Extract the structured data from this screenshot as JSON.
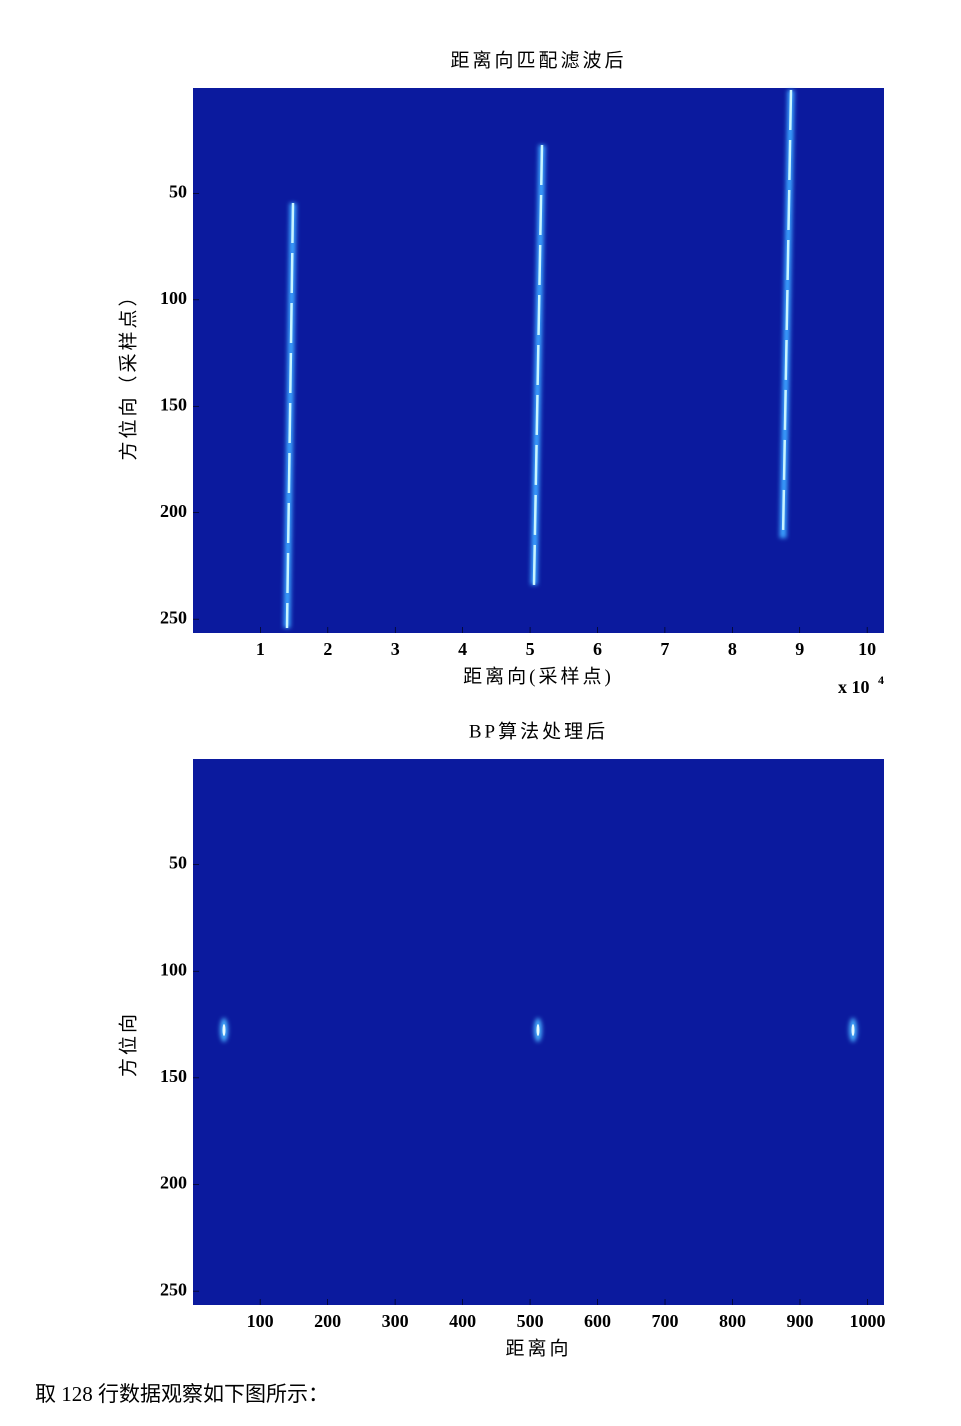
{
  "chart_data": [
    {
      "type": "image",
      "title": "距离向匹配滤波后",
      "x_label": "距离向(采样点)",
      "y_label": "方位向（采样点）",
      "xlim": [
        0,
        102500
      ],
      "ylim": [
        0.5,
        256.5
      ],
      "y_reversed": true,
      "background": "#0b1a9e",
      "xticks": [
        {
          "value": 10000,
          "label": "1"
        },
        {
          "value": 20000,
          "label": "2"
        },
        {
          "value": 30000,
          "label": "3"
        },
        {
          "value": 40000,
          "label": "4"
        },
        {
          "value": 50000,
          "label": "5"
        },
        {
          "value": 60000,
          "label": "6"
        },
        {
          "value": 70000,
          "label": "7"
        },
        {
          "value": 80000,
          "label": "8"
        },
        {
          "value": 90000,
          "label": "9"
        },
        {
          "value": 100000,
          "label": "10"
        }
      ],
      "yticks": [
        50,
        100,
        150,
        200,
        250
      ],
      "x_multiplier": {
        "base": "x 10",
        "exponent": "4"
      }
    },
    {
      "type": "image",
      "title": "BP算法处理后",
      "x_label": "距离向",
      "y_label": "方位向",
      "xlim": [
        0.5,
        1024.5
      ],
      "ylim": [
        0.5,
        256.5
      ],
      "y_reversed": true,
      "background": "#0b1a9e",
      "xticks": [
        100,
        200,
        300,
        400,
        500,
        600,
        700,
        800,
        900,
        1000
      ],
      "yticks": [
        50,
        100,
        150,
        200,
        250
      ]
    }
  ],
  "caption": "取 128 行数据观察如下图所示："
}
